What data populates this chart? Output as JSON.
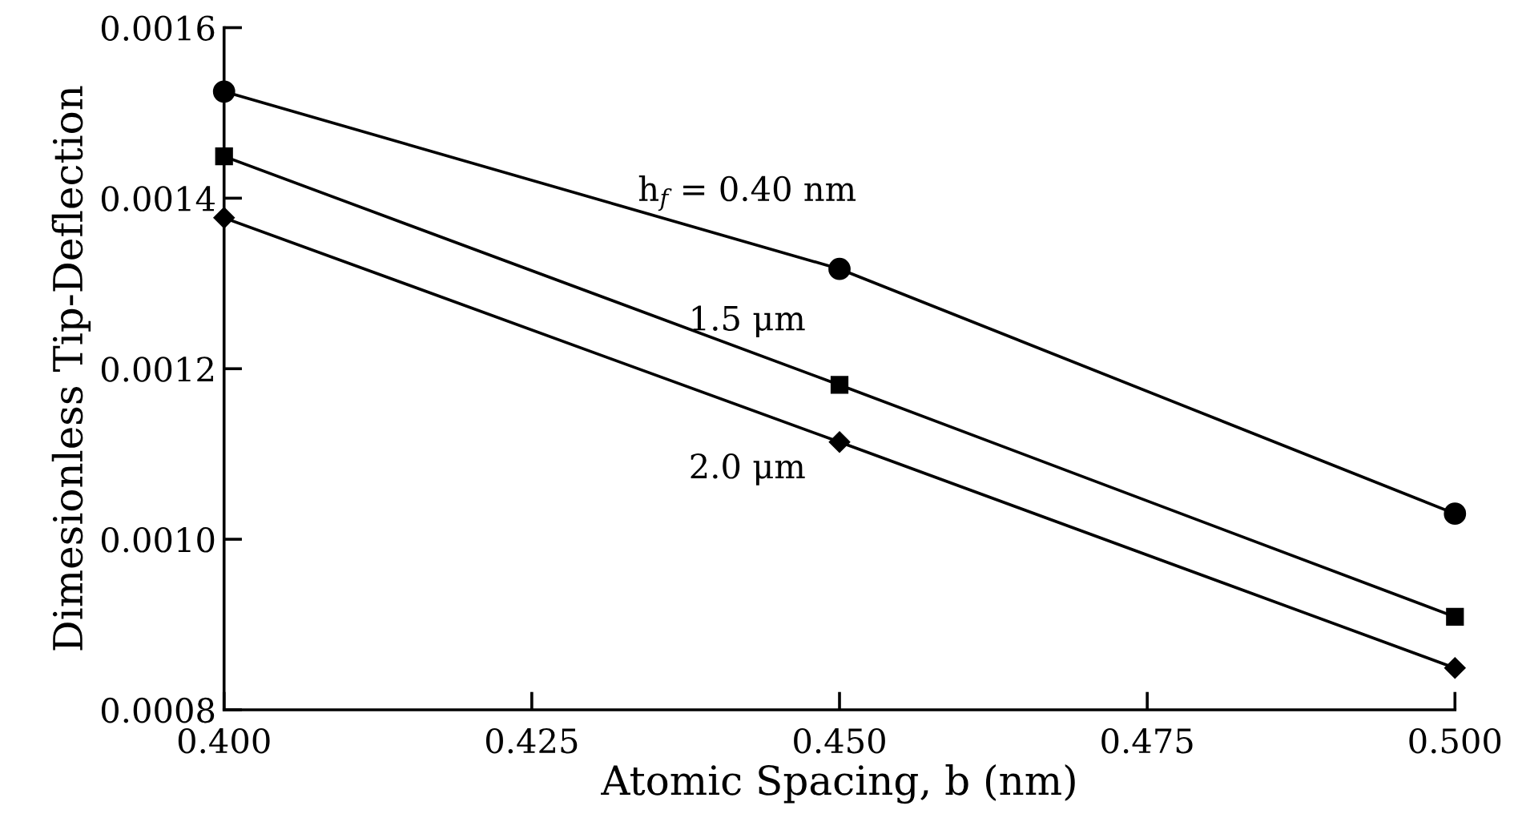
{
  "chart_data": {
    "type": "line",
    "xlabel": "Atomic Spacing, b (nm)",
    "ylabel": "Dimesionless Tip-Deflection",
    "x": [
      0.4,
      0.45,
      0.5
    ],
    "series": [
      {
        "color": "#000000",
        "marker": "circle",
        "values": [
          0.001525,
          0.001317,
          0.00103
        ]
      },
      {
        "color": "#000000",
        "marker": "square",
        "values": [
          0.001449,
          0.001181,
          0.000909
        ]
      },
      {
        "color": "#000000",
        "marker": "diamond",
        "values": [
          0.001377,
          0.001114,
          0.000849
        ]
      }
    ],
    "annotations": [
      "h$_{f}$ = 0.40 nm",
      "1.5 μm",
      "2.0 μm"
    ],
    "xlim": [
      0.4,
      0.5
    ],
    "xticks": [
      {
        "value": 0.4,
        "label": "0.400"
      },
      0.425,
      {
        "value": 0.45,
        "label": "0.450"
      },
      0.475,
      {
        "value": 0.5,
        "label": "0.500"
      }
    ],
    "ylim": [
      0.0008,
      0.0016
    ],
    "yticks": [
      0.0008,
      {
        "value": 0.001,
        "label": "0.0010"
      },
      0.0012,
      0.0014,
      0.0016
    ],
    "grid": false,
    "line_style": "solid"
  }
}
